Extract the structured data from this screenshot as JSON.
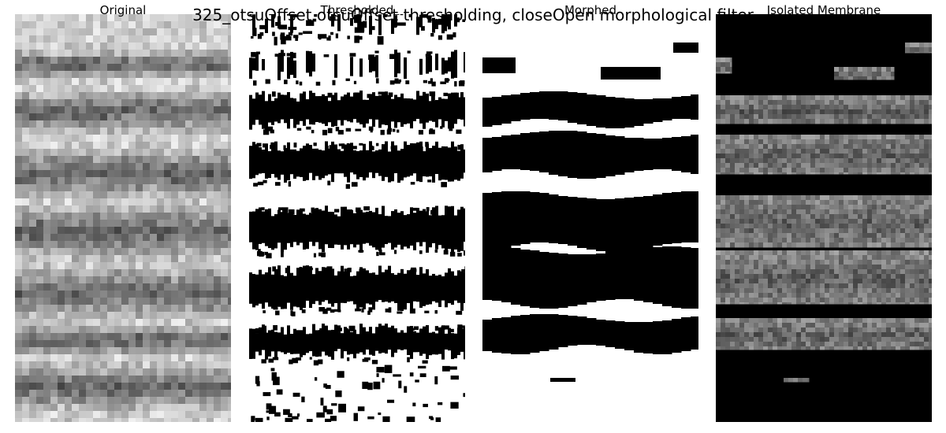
{
  "figure": {
    "suptitle": "325_otsuOffset otsuOffset thresholding, closeOpen morphological filter"
  },
  "panels": [
    {
      "title": "Original",
      "kind": "original"
    },
    {
      "title": "Thresholded",
      "kind": "thresholded"
    },
    {
      "title": "Morphed",
      "kind": "morphed"
    },
    {
      "title": "Isolated Membrane",
      "kind": "isolated"
    }
  ],
  "colors": {
    "background": "#ffffff",
    "membrane": "#000000",
    "original_light": "#d8d8d8",
    "original_dark": "#2a2a2a",
    "isolated_gray": "#8a8a8a"
  }
}
